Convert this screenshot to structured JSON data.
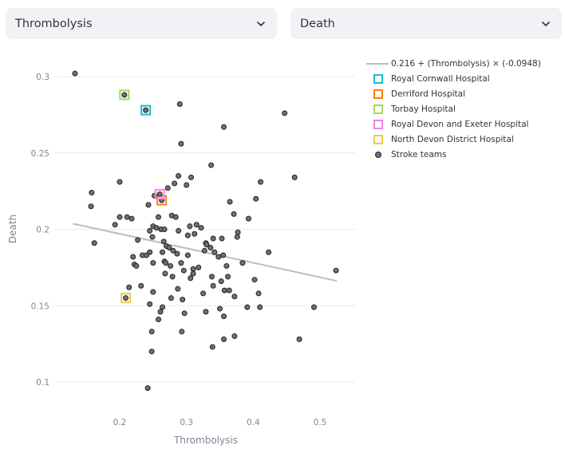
{
  "controls": {
    "x_select": {
      "value": "Thrombolysis"
    },
    "y_select": {
      "value": "Death"
    }
  },
  "icons": {
    "dropdown": "chevron-down-icon"
  },
  "chart_data": {
    "type": "scatter",
    "xlabel": "Thrombolysis",
    "ylabel": "Death",
    "xlim": [
      0.11,
      0.54
    ],
    "ylim": [
      0.085,
      0.31
    ],
    "xticks": [
      0.2,
      0.3,
      0.4,
      0.5
    ],
    "xtick_labels": [
      "0.2",
      "0.3",
      "0.4",
      "0.5"
    ],
    "yticks": [
      0.1,
      0.15,
      0.2,
      0.25,
      0.3
    ],
    "ytick_labels": [
      "0.1",
      "0.15",
      "0.2",
      "0.25",
      "0.3"
    ],
    "grid": true,
    "legend_position": "right",
    "trendline": {
      "label": "0.216 + (Thrombolysis) × (-0.0948)",
      "intercept": 0.216,
      "slope": -0.0948,
      "x_range": [
        0.13,
        0.525
      ],
      "color": "#bdbdbd"
    },
    "highlighted": [
      {
        "name": "Royal Cornwall Hospital",
        "x": 0.239,
        "y": 0.278,
        "color": "#17becf"
      },
      {
        "name": "Derriford Hospital",
        "x": 0.263,
        "y": 0.219,
        "color": "#ff7f0e"
      },
      {
        "name": "Torbay Hospital",
        "x": 0.207,
        "y": 0.288,
        "color": "#9edc5b"
      },
      {
        "name": "Royal Devon and Exeter Hospital",
        "x": 0.26,
        "y": 0.223,
        "color": "#ee82ee"
      },
      {
        "name": "North Devon District Hospital",
        "x": 0.209,
        "y": 0.155,
        "color": "#f2c94c"
      }
    ],
    "series": [
      {
        "name": "Stroke teams",
        "color": "#707070",
        "points": [
          [
            0.133,
            0.302
          ],
          [
            0.29,
            0.282
          ],
          [
            0.356,
            0.267
          ],
          [
            0.447,
            0.276
          ],
          [
            0.292,
            0.256
          ],
          [
            0.337,
            0.242
          ],
          [
            0.462,
            0.234
          ],
          [
            0.2,
            0.231
          ],
          [
            0.3,
            0.229
          ],
          [
            0.411,
            0.231
          ],
          [
            0.158,
            0.224
          ],
          [
            0.404,
            0.22
          ],
          [
            0.157,
            0.215
          ],
          [
            0.243,
            0.216
          ],
          [
            0.365,
            0.218
          ],
          [
            0.282,
            0.23
          ],
          [
            0.288,
            0.235
          ],
          [
            0.307,
            0.234
          ],
          [
            0.272,
            0.227
          ],
          [
            0.252,
            0.222
          ],
          [
            0.2,
            0.208
          ],
          [
            0.211,
            0.208
          ],
          [
            0.218,
            0.207
          ],
          [
            0.258,
            0.208
          ],
          [
            0.278,
            0.209
          ],
          [
            0.284,
            0.208
          ],
          [
            0.371,
            0.21
          ],
          [
            0.393,
            0.207
          ],
          [
            0.193,
            0.203
          ],
          [
            0.25,
            0.202
          ],
          [
            0.255,
            0.201
          ],
          [
            0.262,
            0.2
          ],
          [
            0.245,
            0.199
          ],
          [
            0.267,
            0.2
          ],
          [
            0.305,
            0.202
          ],
          [
            0.315,
            0.203
          ],
          [
            0.377,
            0.198
          ],
          [
            0.376,
            0.195
          ],
          [
            0.162,
            0.191
          ],
          [
            0.227,
            0.193
          ],
          [
            0.249,
            0.195
          ],
          [
            0.266,
            0.192
          ],
          [
            0.288,
            0.199
          ],
          [
            0.302,
            0.196
          ],
          [
            0.312,
            0.197
          ],
          [
            0.329,
            0.191
          ],
          [
            0.34,
            0.194
          ],
          [
            0.353,
            0.194
          ],
          [
            0.22,
            0.182
          ],
          [
            0.234,
            0.183
          ],
          [
            0.24,
            0.183
          ],
          [
            0.245,
            0.185
          ],
          [
            0.264,
            0.185
          ],
          [
            0.27,
            0.189
          ],
          [
            0.274,
            0.188
          ],
          [
            0.28,
            0.186
          ],
          [
            0.286,
            0.184
          ],
          [
            0.302,
            0.183
          ],
          [
            0.327,
            0.186
          ],
          [
            0.336,
            0.188
          ],
          [
            0.342,
            0.185
          ],
          [
            0.348,
            0.182
          ],
          [
            0.355,
            0.183
          ],
          [
            0.222,
            0.177
          ],
          [
            0.225,
            0.176
          ],
          [
            0.25,
            0.178
          ],
          [
            0.267,
            0.179
          ],
          [
            0.269,
            0.178
          ],
          [
            0.276,
            0.176
          ],
          [
            0.292,
            0.178
          ],
          [
            0.31,
            0.174
          ],
          [
            0.318,
            0.175
          ],
          [
            0.33,
            0.19
          ],
          [
            0.384,
            0.178
          ],
          [
            0.36,
            0.176
          ],
          [
            0.423,
            0.185
          ],
          [
            0.268,
            0.171
          ],
          [
            0.279,
            0.169
          ],
          [
            0.296,
            0.173
          ],
          [
            0.306,
            0.168
          ],
          [
            0.31,
            0.171
          ],
          [
            0.338,
            0.169
          ],
          [
            0.352,
            0.166
          ],
          [
            0.362,
            0.169
          ],
          [
            0.402,
            0.167
          ],
          [
            0.524,
            0.173
          ],
          [
            0.214,
            0.162
          ],
          [
            0.232,
            0.163
          ],
          [
            0.25,
            0.159
          ],
          [
            0.287,
            0.161
          ],
          [
            0.34,
            0.163
          ],
          [
            0.357,
            0.16
          ],
          [
            0.364,
            0.16
          ],
          [
            0.325,
            0.158
          ],
          [
            0.408,
            0.158
          ],
          [
            0.245,
            0.151
          ],
          [
            0.277,
            0.155
          ],
          [
            0.294,
            0.154
          ],
          [
            0.372,
            0.156
          ],
          [
            0.264,
            0.149
          ],
          [
            0.261,
            0.146
          ],
          [
            0.297,
            0.145
          ],
          [
            0.329,
            0.146
          ],
          [
            0.35,
            0.148
          ],
          [
            0.356,
            0.143
          ],
          [
            0.391,
            0.149
          ],
          [
            0.41,
            0.149
          ],
          [
            0.491,
            0.149
          ],
          [
            0.258,
            0.141
          ],
          [
            0.248,
            0.133
          ],
          [
            0.293,
            0.133
          ],
          [
            0.356,
            0.128
          ],
          [
            0.339,
            0.123
          ],
          [
            0.372,
            0.13
          ],
          [
            0.469,
            0.128
          ],
          [
            0.248,
            0.12
          ],
          [
            0.242,
            0.096
          ],
          [
            0.322,
            0.201
          ]
        ]
      }
    ]
  }
}
